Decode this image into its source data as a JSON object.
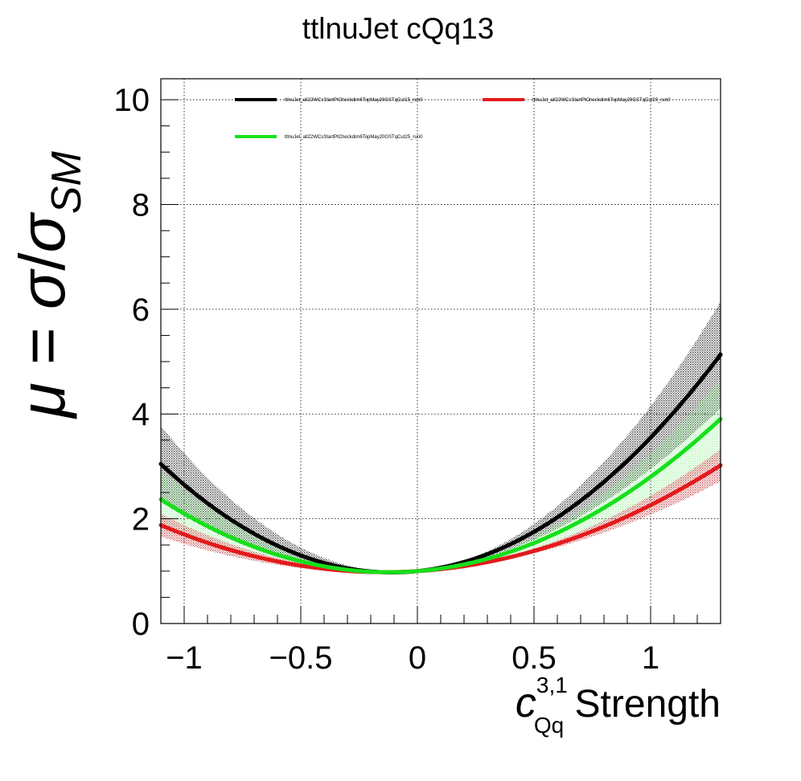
{
  "chart_data": {
    "type": "line",
    "title": "ttlnuJet cQq13",
    "xlabel": {
      "main": "c",
      "superscript": "3,1",
      "subscript": "Qq",
      "suffix": " Strength"
    },
    "ylabel": {
      "mu": "μ",
      "equals": " = ",
      "sigma": "σ",
      "slash": "/",
      "sigma2": "σ",
      "sub": "SM"
    },
    "xlim": [
      -1.1,
      1.3
    ],
    "ylim": [
      0,
      10.4
    ],
    "xticks": [
      {
        "value": -1,
        "label": "−1"
      },
      {
        "value": -0.5,
        "label": "−0.5"
      },
      {
        "value": 0,
        "label": "0"
      },
      {
        "value": 0.5,
        "label": "0.5"
      },
      {
        "value": 1,
        "label": "1"
      }
    ],
    "yticks": [
      {
        "value": 0,
        "label": "0"
      },
      {
        "value": 2,
        "label": "2"
      },
      {
        "value": 4,
        "label": "4"
      },
      {
        "value": 6,
        "label": "6"
      },
      {
        "value": 8,
        "label": "8"
      },
      {
        "value": 10,
        "label": "10"
      }
    ],
    "grid": true,
    "legend_position": "top",
    "series": [
      {
        "name": "ttlnuJet_all22WCsStartPtCheckdim6TopMay20GSTqCut15_run0",
        "color": "#000000",
        "band_color": "#000000",
        "linear": 0.45,
        "quadratic": 2.1,
        "band_quadratic": 0.6
      },
      {
        "name": "ttlnuJet_all22WCsStartPtCheckdim6TopMay20GSTqCut20_run0",
        "color": "#e31a1c",
        "band_color": "#c0181e",
        "linear": 0.28,
        "quadratic": 0.98,
        "band_quadratic": 0.18
      },
      {
        "name": "ttlnuJet_all22WCsStartPtCheckdim6TopMay20GSTqCut25_run0",
        "color": "#16e01b",
        "band_color": "#16e01b",
        "linear": 0.35,
        "quadratic": 1.45,
        "band_quadratic": 0.45
      }
    ]
  }
}
